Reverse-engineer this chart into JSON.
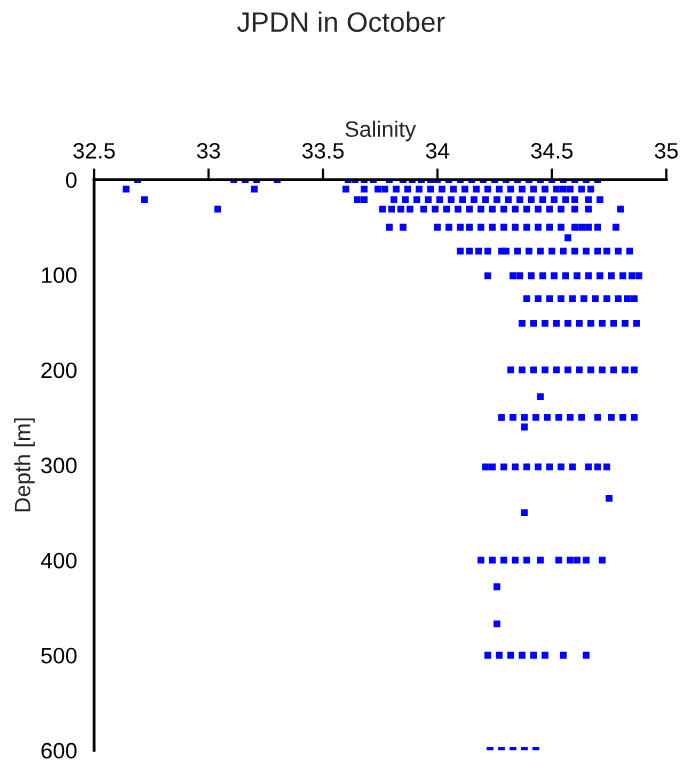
{
  "chart_data": {
    "type": "scatter",
    "title": "JPDN in October",
    "xlabel": "Salinity",
    "ylabel": "Depth [m]",
    "xlim": [
      32.5,
      35
    ],
    "xticks": [
      32.5,
      33,
      33.5,
      34,
      34.5,
      35
    ],
    "ylim": [
      600,
      0
    ],
    "yticks": [
      0,
      100,
      200,
      300,
      400,
      500,
      600
    ],
    "grid": false,
    "legend": false,
    "marker": "square",
    "series": [
      {
        "color": "#0000ff",
        "x": [
          32.69,
          33.11,
          33.16,
          33.21,
          33.3,
          33.61,
          33.64,
          33.68,
          33.72,
          33.79,
          33.85,
          33.89,
          33.93,
          33.97,
          34.0,
          34.05,
          34.1,
          34.15,
          34.2,
          34.25,
          34.3,
          34.35,
          34.4,
          34.45,
          34.5,
          34.55,
          34.6,
          34.65,
          34.7
        ],
        "values": [
          0,
          0,
          0,
          0,
          0,
          0,
          0,
          0,
          0,
          0,
          0,
          0,
          0,
          0,
          0,
          0,
          0,
          0,
          0,
          0,
          0,
          0,
          0,
          0,
          0,
          0,
          0,
          0,
          0
        ]
      },
      {
        "color": "#0000ff",
        "x": [
          32.64,
          33.2,
          33.6,
          33.68,
          33.74,
          33.77,
          33.82,
          33.87,
          33.92,
          33.97,
          34.02,
          34.07,
          34.12,
          34.17,
          34.22,
          34.27,
          34.32,
          34.37,
          34.42,
          34.47,
          34.52,
          34.55,
          34.58,
          34.63,
          34.67
        ],
        "values": [
          10,
          10,
          10,
          10,
          10,
          10,
          10,
          10,
          10,
          10,
          10,
          10,
          10,
          10,
          10,
          10,
          10,
          10,
          10,
          10,
          10,
          10,
          10,
          10,
          10
        ]
      },
      {
        "color": "#0000ff",
        "x": [
          32.72,
          33.65,
          33.68,
          33.81,
          33.86,
          33.91,
          33.96,
          34.01,
          34.06,
          34.11,
          34.16,
          34.21,
          34.26,
          34.31,
          34.36,
          34.41,
          34.46,
          34.51,
          34.56,
          34.6,
          34.66,
          34.71
        ],
        "values": [
          21,
          21,
          21,
          21,
          21,
          21,
          21,
          21,
          21,
          21,
          21,
          21,
          21,
          21,
          21,
          21,
          21,
          21,
          21,
          21,
          21,
          21
        ]
      },
      {
        "color": "#0000ff",
        "x": [
          33.04,
          33.76,
          33.8,
          33.84,
          33.88,
          33.94,
          33.99,
          34.04,
          34.09,
          34.14,
          34.19,
          34.24,
          34.29,
          34.34,
          34.39,
          34.44,
          34.49,
          34.54,
          34.6,
          34.66,
          34.8
        ],
        "values": [
          31,
          31,
          31,
          31,
          31,
          31,
          31,
          31,
          31,
          31,
          31,
          31,
          31,
          31,
          31,
          31,
          31,
          31,
          31,
          31,
          31
        ]
      },
      {
        "color": "#0000ff",
        "x": [
          33.79,
          33.85,
          34.0,
          34.05,
          34.1,
          34.14,
          34.19,
          34.24,
          34.29,
          34.34,
          34.39,
          34.44,
          34.49,
          34.54,
          34.6,
          34.63,
          34.66,
          34.7,
          34.78,
          34.57
        ],
        "values": [
          50,
          50,
          50,
          50,
          50,
          50,
          50,
          50,
          50,
          50,
          50,
          50,
          50,
          50,
          50,
          50,
          50,
          50,
          50,
          61
        ]
      },
      {
        "color": "#0000ff",
        "x": [
          34.1,
          34.14,
          34.18,
          34.22,
          34.28,
          34.3,
          34.35,
          34.4,
          34.45,
          34.5,
          34.55,
          34.6,
          34.65,
          34.7,
          34.74,
          34.79,
          34.84
        ],
        "values": [
          75,
          75,
          75,
          75,
          75,
          75,
          75,
          75,
          75,
          75,
          75,
          75,
          75,
          75,
          75,
          75,
          75
        ]
      },
      {
        "color": "#0000ff",
        "x": [
          34.22,
          34.33,
          34.36,
          34.41,
          34.46,
          34.51,
          34.56,
          34.61,
          34.66,
          34.71,
          34.76,
          34.81,
          34.85,
          34.88
        ],
        "values": [
          101,
          101,
          101,
          101,
          101,
          101,
          101,
          101,
          101,
          101,
          101,
          101,
          101,
          101
        ]
      },
      {
        "color": "#0000ff",
        "x": [
          34.39,
          34.44,
          34.49,
          34.54,
          34.59,
          34.64,
          34.69,
          34.74,
          34.79,
          34.83,
          34.86
        ],
        "values": [
          125,
          125,
          125,
          125,
          125,
          125,
          125,
          125,
          125,
          125,
          125
        ]
      },
      {
        "color": "#0000ff",
        "x": [
          34.37,
          34.42,
          34.47,
          34.52,
          34.57,
          34.62,
          34.67,
          34.72,
          34.77,
          34.82,
          34.87
        ],
        "values": [
          151,
          151,
          151,
          151,
          151,
          151,
          151,
          151,
          151,
          151,
          151
        ]
      },
      {
        "color": "#0000ff",
        "x": [
          34.32,
          34.37,
          34.42,
          34.47,
          34.52,
          34.57,
          34.62,
          34.67,
          34.72,
          34.77,
          34.82,
          34.86,
          34.45
        ],
        "values": [
          200,
          200,
          200,
          200,
          200,
          200,
          200,
          200,
          200,
          200,
          200,
          200,
          228
        ]
      },
      {
        "color": "#0000ff",
        "x": [
          34.28,
          34.33,
          34.38,
          34.43,
          34.48,
          34.53,
          34.58,
          34.63,
          34.7,
          34.76,
          34.81,
          34.86,
          34.38
        ],
        "values": [
          250,
          250,
          250,
          250,
          250,
          250,
          250,
          250,
          250,
          250,
          250,
          250,
          260
        ]
      },
      {
        "color": "#0000ff",
        "x": [
          34.21,
          34.24,
          34.29,
          34.34,
          34.39,
          34.44,
          34.49,
          34.54,
          34.59,
          34.66,
          34.7,
          34.74,
          34.75,
          34.38
        ],
        "values": [
          302,
          302,
          302,
          302,
          302,
          302,
          302,
          302,
          302,
          302,
          302,
          302,
          335,
          350
        ]
      },
      {
        "color": "#0000ff",
        "x": [
          34.19,
          34.24,
          34.29,
          34.34,
          34.39,
          34.45,
          34.53,
          34.58,
          34.61,
          34.65,
          34.72,
          34.26,
          34.26
        ],
        "values": [
          400,
          400,
          400,
          400,
          400,
          400,
          400,
          400,
          400,
          400,
          400,
          428,
          467
        ]
      },
      {
        "color": "#0000ff",
        "x": [
          34.22,
          34.27,
          34.32,
          34.37,
          34.42,
          34.47,
          34.55,
          34.65,
          34.23,
          34.28,
          34.33,
          34.38,
          34.43
        ],
        "values": [
          500,
          500,
          500,
          500,
          500,
          500,
          500,
          500,
          600,
          600,
          600,
          600,
          600
        ]
      }
    ]
  }
}
